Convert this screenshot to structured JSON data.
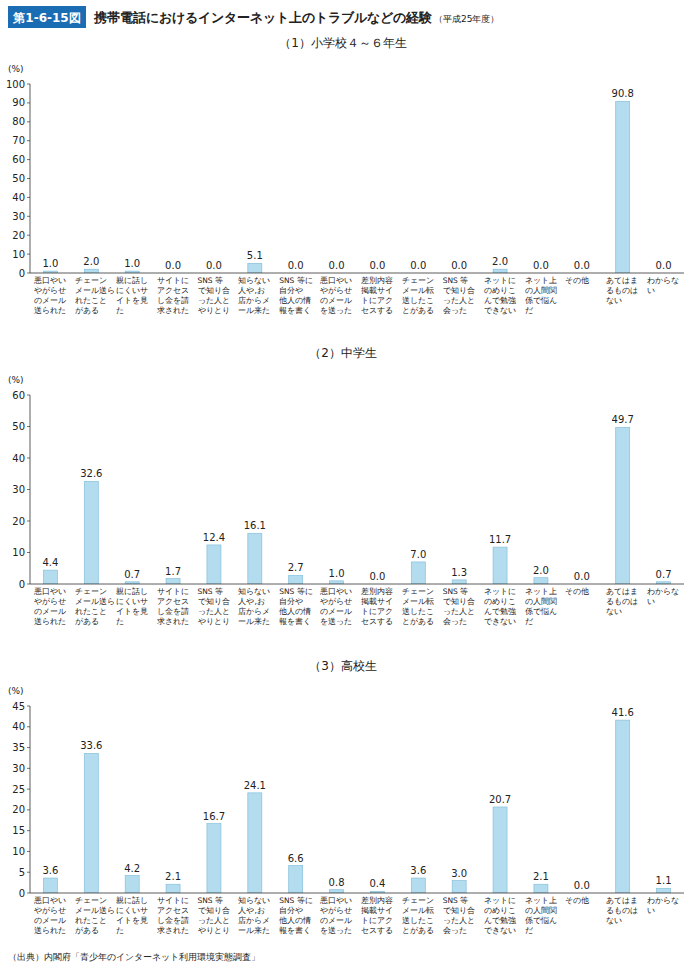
{
  "header": {
    "figure_number": "第1-6-15図",
    "title": "携帯電話におけるインターネット上のトラブルなどの経験",
    "note": "（平成25年度）"
  },
  "chart_data": [
    {
      "type": "bar",
      "title": "（1）小学校４～６年生",
      "y_label": "(%)",
      "categories": [
        "悪口やい\nやがらせ\nのメール\n送られた",
        "チェーン\nメール送ら\nれたこと\nがある",
        "親に話し\nにくいサ\nイトを見\nた",
        "サイトに\nアクセス\nし金を請\n求された",
        "SNS 等\nで知り合\nった人と\nやりとり",
        "知らない\n人や,お\n店からメ\nール来た",
        "SNS 等に\n自分や\n他人の情\n報を書く",
        "悪口やい\nやがらせ\nのメール\nを送った",
        "差別内容\n掲載サイ\nトにアク\nセスする",
        "チェーン\nメール転\n送したこ\nとがある",
        "SNS 等\nで知り合\nった人と\n会った",
        "ネットに\nのめりこ\nんで勉強\nできない",
        "ネット上\nの人間関\n係で悩ん\nだ",
        "その他",
        "あてはま\nるものは\nない",
        "わからな\nい"
      ],
      "values": [
        1.0,
        2.0,
        1.0,
        0.0,
        0.0,
        5.1,
        0.0,
        0.0,
        0.0,
        0.0,
        0.0,
        2.0,
        0.0,
        0.0,
        90.8,
        0.0
      ],
      "value_labels": [
        "1.0",
        "2.0",
        "1.0",
        "0.0",
        "0.0",
        "5.1",
        "0.0",
        "0.0",
        "0.0",
        "0.0",
        "0.0",
        "2.0",
        "0.0",
        "0.0",
        "90.8",
        "0.0"
      ],
      "color": "#b3dcee",
      "data_labels": true,
      "grid": false,
      "ylim": [
        0,
        100
      ],
      "yticks": [
        0,
        10,
        20,
        30,
        40,
        50,
        60,
        70,
        80,
        90,
        100
      ]
    },
    {
      "type": "bar",
      "title": "（2）中学生",
      "y_label": "(%)",
      "categories": [
        "悪口やい\nやがらせ\nのメール\n送られた",
        "チェーン\nメール送ら\nれたこと\nがある",
        "親に話し\nにくいサ\nイトを見\nた",
        "サイトに\nアクセス\nし金を請\n求された",
        "SNS 等\nで知り合\nった人と\nやりとり",
        "知らない\n人や,お\n店からメ\nール来た",
        "SNS 等に\n自分や\n他人の情\n報を書く",
        "悪口やい\nやがらせ\nのメール\nを送った",
        "差別内容\n掲載サイ\nトにアク\nセスする",
        "チェーン\nメール転\n送したこ\nとがある",
        "SNS 等\nで知り合\nった人と\n会った",
        "ネットに\nのめりこ\nんで勉強\nできない",
        "ネット上\nの人間関\n係で悩ん\nだ",
        "その他",
        "あてはま\nるものは\nない",
        "わからな\nい"
      ],
      "values": [
        4.4,
        32.6,
        0.7,
        1.7,
        12.4,
        16.1,
        2.7,
        1.0,
        0.0,
        7.0,
        1.3,
        11.7,
        2.0,
        0.0,
        49.7,
        0.7
      ],
      "value_labels": [
        "4.4",
        "32.6",
        "0.7",
        "1.7",
        "12.4",
        "16.1",
        "2.7",
        "1.0",
        "0.0",
        "7.0",
        "1.3",
        "11.7",
        "2.0",
        "0.0",
        "49.7",
        "0.7"
      ],
      "color": "#b3dcee",
      "data_labels": true,
      "grid": false,
      "ylim": [
        0,
        60
      ],
      "yticks": [
        0,
        10,
        20,
        30,
        40,
        50,
        60
      ]
    },
    {
      "type": "bar",
      "title": "（3）高校生",
      "y_label": "(%)",
      "categories": [
        "悪口やい\nやがらせ\nのメール\n送られた",
        "チェーン\nメール送ら\nれたこと\nがある",
        "親に話し\nにくいサ\nイトを見\nた",
        "サイトに\nアクセス\nし金を請\n求された",
        "SNS 等\nで知り合\nった人と\nやりとり",
        "知らない\n人や,お\n店からメ\nール来た",
        "SNS 等に\n自分や\n他人の情\n報を書く",
        "悪口やい\nやがらせ\nのメール\nを送った",
        "差別内容\n掲載サイ\nトにアク\nセスする",
        "チェーン\nメール転\n送したこ\nとがある",
        "SNS 等\nで知り合\nった人と\n会った",
        "ネットに\nのめりこ\nんで勉強\nできない",
        "ネット上\nの人間関\n係で悩ん\nだ",
        "その他",
        "あてはま\nるものは\nない",
        "わからな\nい"
      ],
      "values": [
        3.6,
        33.6,
        4.2,
        2.1,
        16.7,
        24.1,
        6.6,
        0.8,
        0.4,
        3.6,
        3.0,
        20.7,
        2.1,
        0.0,
        41.6,
        1.1
      ],
      "value_labels": [
        "3.6",
        "33.6",
        "4.2",
        "2.1",
        "16.7",
        "24.1",
        "6.6",
        "0.8",
        "0.4",
        "3.6",
        "3.0",
        "20.7",
        "2.1",
        "0.0",
        "41.6",
        "1.1"
      ],
      "color": "#b3dcee",
      "data_labels": true,
      "grid": false,
      "ylim": [
        0,
        45
      ],
      "yticks": [
        0,
        5,
        10,
        15,
        20,
        25,
        30,
        35,
        40,
        45
      ]
    }
  ],
  "source": "（出典）内閣府「青少年のインターネット利用環境実態調査」"
}
